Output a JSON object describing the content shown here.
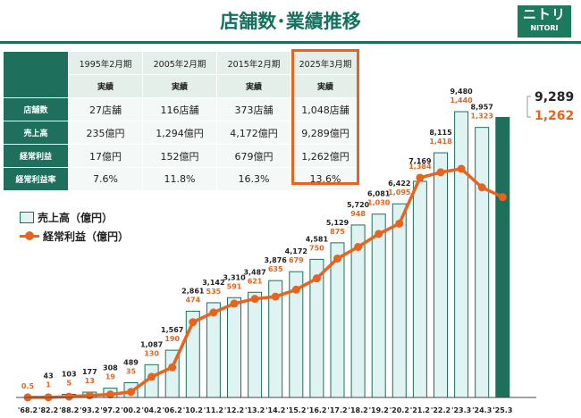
{
  "title": "店舗数･業績推移",
  "logo": {
    "mark": "ニトリ",
    "text": "NITORI"
  },
  "table": {
    "periods": [
      "1995年2月期",
      "2005年2月期",
      "2015年2月期",
      "2025年3月期"
    ],
    "subheader": "実績",
    "rows": [
      {
        "label": "店舗数",
        "values": [
          "27店舗",
          "116店舗",
          "373店舗",
          "1,048店舗"
        ]
      },
      {
        "label": "売上高",
        "values": [
          "235億円",
          "1,294億円",
          "4,172億円",
          "9,289億円"
        ]
      },
      {
        "label": "経常利益",
        "values": [
          "17億円",
          "152億円",
          "679億円",
          "1,262億円"
        ]
      },
      {
        "label": "経常利益率",
        "values": [
          "7.6%",
          "11.8%",
          "16.3%",
          "13.6%"
        ]
      }
    ]
  },
  "legend": {
    "sales": "売上高（億円）",
    "profit": "経常利益（億円）"
  },
  "colors": {
    "brand": "#1e6f5c",
    "bar_fill": "#dff3f3",
    "last_bar": "#1e6f5c",
    "profit": "#e8641e"
  },
  "chart_data": {
    "type": "bar",
    "categories": [
      "'68.2",
      "'82.2",
      "'88.2",
      "'93.2",
      "'97.2",
      "'00.2",
      "'04.2",
      "'06.2",
      "'10.2",
      "'11.2",
      "'12.2",
      "'13.2",
      "'14.2",
      "'15.2",
      "'16.2",
      "'17.2",
      "'18.2",
      "'19.2",
      "'20.2",
      "'21.2",
      "'22.2",
      "'23.3",
      "'24.3",
      "'25.3"
    ],
    "series": [
      {
        "name": "売上高（億円）",
        "type": "bar",
        "values": [
          null,
          43,
          103,
          177,
          308,
          489,
          1087,
          1567,
          2861,
          3142,
          3310,
          3487,
          3876,
          4172,
          4581,
          5129,
          5720,
          6081,
          6422,
          7169,
          8115,
          9480,
          8957,
          9289
        ],
        "labels": [
          "",
          "43",
          "103",
          "177",
          "308",
          "489",
          "1,087",
          "1,567",
          "2,861",
          "3,142",
          "3,310",
          "3,487",
          "3,876",
          "4,172",
          "4,581",
          "5,129",
          "5,720",
          "6,081",
          "6,422",
          "7,169",
          "8,115",
          "9,480",
          "8,957",
          "9,289"
        ]
      },
      {
        "name": "経常利益（億円）",
        "type": "line",
        "values": [
          0.5,
          1,
          5,
          13,
          19,
          35,
          130,
          190,
          474,
          535,
          591,
          621,
          635,
          679,
          750,
          875,
          948,
          1030,
          1095,
          1384,
          1418,
          1440,
          1323,
          1262
        ],
        "labels": [
          "0.5",
          "1",
          "5",
          "13",
          "19",
          "35",
          "130",
          "190",
          "474",
          "535",
          "591",
          "621",
          "635",
          "679",
          "750",
          "875",
          "948",
          "1,030",
          "1,095",
          "1,384",
          "1,418",
          "1,440",
          "1,323",
          "1,262"
        ]
      }
    ],
    "grid": false,
    "legend_position": "left"
  }
}
